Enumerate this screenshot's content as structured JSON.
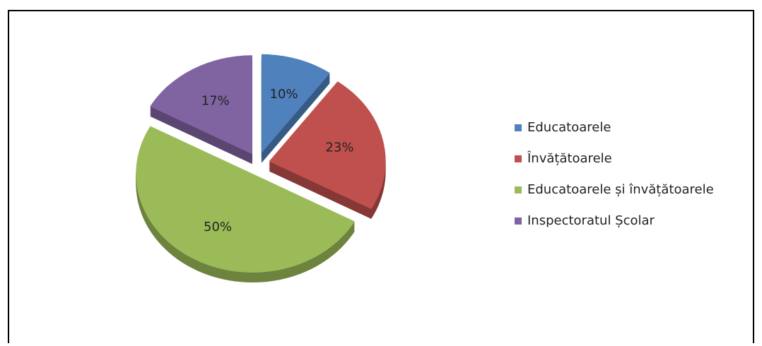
{
  "chart_data": {
    "type": "pie",
    "categories": [
      "Educatoarele",
      "Învățătoarele",
      "Educatoarele și învățătoarele",
      "Inspectoratul Școlar"
    ],
    "values": [
      10,
      23,
      50,
      17
    ],
    "value_labels": [
      "10%",
      "23%",
      "50%",
      "17%"
    ],
    "colors": [
      "#4f81bd",
      "#c0504d",
      "#9bbb59",
      "#8064a2"
    ],
    "legend": "right"
  }
}
